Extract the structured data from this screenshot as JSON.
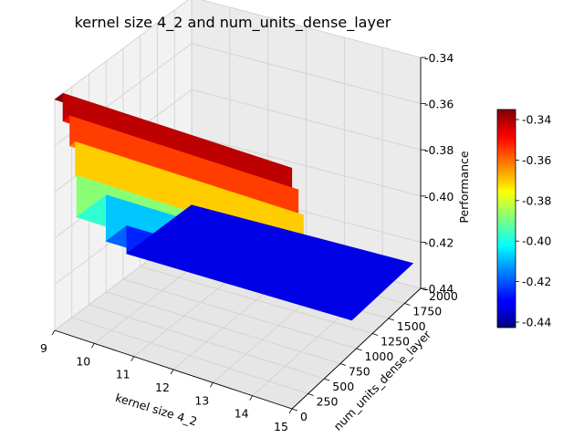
{
  "chart_data": {
    "type": "surface3d",
    "title": "kernel size 4_2 and num_units_dense_layer",
    "xlabel": "kernel size 4_2",
    "ylabel": "num_units_dense_layer",
    "zlabel": "Performance",
    "x_ticks": [
      "9",
      "10",
      "11",
      "12",
      "13",
      "14",
      "15"
    ],
    "y_ticks": [
      "0",
      "250",
      "500",
      "750",
      "1000",
      "1250",
      "1500",
      "1750",
      "2000"
    ],
    "z_ticks": [
      "-0.44",
      "-0.42",
      "-0.40",
      "-0.38",
      "-0.36",
      "-0.34"
    ],
    "colorbar_ticks": [
      "-0.44",
      "-0.42",
      "-0.40",
      "-0.38",
      "-0.36",
      "-0.34"
    ],
    "xlim": [
      9,
      15
    ],
    "ylim": [
      0,
      2000
    ],
    "zlim": [
      -0.44,
      -0.34
    ],
    "colormap": "jet",
    "grid": true,
    "colorbar": "right",
    "surface": {
      "x_at_back": 9,
      "x_at_front": 14.8,
      "bands_by_y": [
        {
          "y_from": 0,
          "y_to": 120,
          "value": -0.34
        },
        {
          "y_from": 120,
          "y_to": 220,
          "value": -0.352
        },
        {
          "y_from": 220,
          "y_to": 300,
          "value": -0.365
        },
        {
          "y_from": 300,
          "y_to": 320,
          "value": -0.38
        },
        {
          "y_from": 320,
          "y_to": 750,
          "value": -0.398
        },
        {
          "y_from": 750,
          "y_to": 1050,
          "value": -0.418
        },
        {
          "y_from": 1050,
          "y_to": 2000,
          "value": -0.43
        }
      ]
    }
  }
}
